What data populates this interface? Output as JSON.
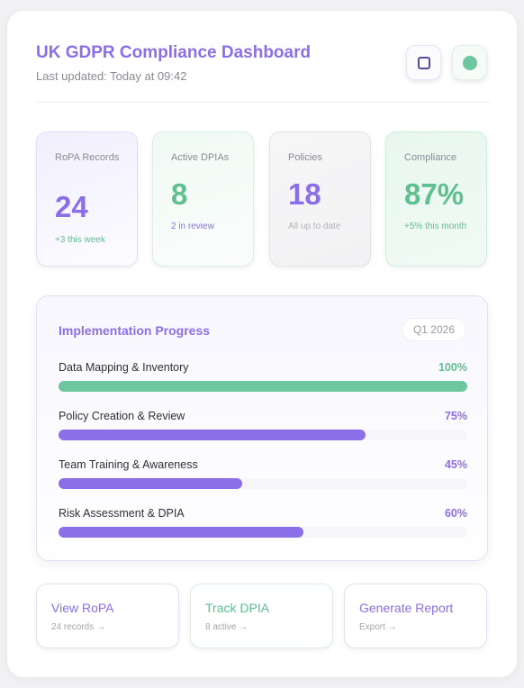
{
  "header": {
    "title": "UK GDPR Compliance Dashboard",
    "subtitle": "Last updated: Today at 09:42",
    "buttons": [
      {
        "icon": "square-outline-icon"
      },
      {
        "icon": "green-dot-icon"
      }
    ]
  },
  "stats": [
    {
      "label": "RoPA Records",
      "value": "24",
      "sub": "+3 this week"
    },
    {
      "label": "Active DPIAs",
      "value": "8",
      "sub": "2 in review"
    },
    {
      "label": "Policies",
      "value": "18",
      "sub": "All up to date"
    },
    {
      "label": "Compliance",
      "value": "87%",
      "sub": "+5% this month"
    }
  ],
  "progress": {
    "title": "Implementation Progress",
    "badge": "Q1 2026",
    "items": [
      {
        "label": "Data Mapping & Inventory",
        "percent_text": "100%",
        "value": 1.0,
        "color": "#6cc79e"
      },
      {
        "label": "Policy Creation & Review",
        "percent_text": "75%",
        "value": 0.75,
        "color": "#8b6fe8"
      },
      {
        "label": "Team Training & Awareness",
        "percent_text": "45%",
        "value": 0.45,
        "color": "#8b6fe8"
      },
      {
        "label": "Risk Assessment & DPIA",
        "percent_text": "60%",
        "value": 0.6,
        "color": "#8b6fe8"
      }
    ]
  },
  "actions": [
    {
      "title": "View RoPA",
      "sub": "24 records →"
    },
    {
      "title": "Track DPIA",
      "sub": "8 active →"
    },
    {
      "title": "Generate Report",
      "sub": "Export →"
    }
  ],
  "colors": {
    "accent_purple": "#8b6fe8",
    "accent_green": "#6cc79e"
  }
}
